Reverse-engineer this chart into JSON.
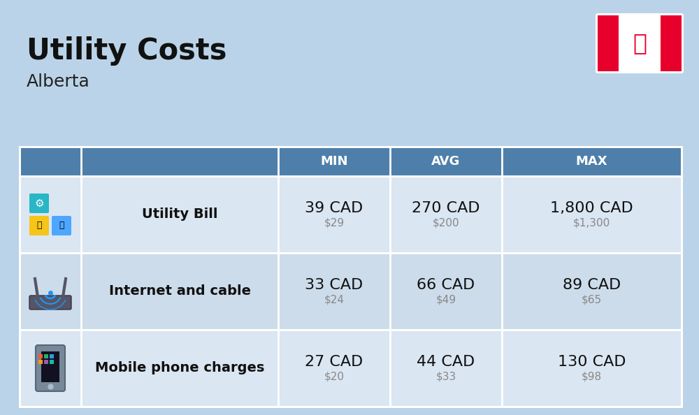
{
  "title": "Utility Costs",
  "subtitle": "Alberta",
  "background_color": "#bad3e8",
  "header_bg_color": "#4e7faa",
  "header_text_color": "#ffffff",
  "row_bg_color_1": "#dae6f2",
  "row_bg_color_2": "#cddcea",
  "table_border_color": "#ffffff",
  "headers": [
    "MIN",
    "AVG",
    "MAX"
  ],
  "rows": [
    {
      "icon": "utility",
      "label": "Utility Bill",
      "min_cad": "39 CAD",
      "min_usd": "$29",
      "avg_cad": "270 CAD",
      "avg_usd": "$200",
      "max_cad": "1,800 CAD",
      "max_usd": "$1,300"
    },
    {
      "icon": "internet",
      "label": "Internet and cable",
      "min_cad": "33 CAD",
      "min_usd": "$24",
      "avg_cad": "66 CAD",
      "avg_usd": "$49",
      "max_cad": "89 CAD",
      "max_usd": "$65"
    },
    {
      "icon": "mobile",
      "label": "Mobile phone charges",
      "min_cad": "27 CAD",
      "min_usd": "$20",
      "avg_cad": "44 CAD",
      "avg_usd": "$33",
      "max_cad": "130 CAD",
      "max_usd": "$98"
    }
  ],
  "title_fontsize": 30,
  "subtitle_fontsize": 18,
  "header_fontsize": 13,
  "cad_fontsize": 16,
  "usd_fontsize": 11,
  "label_fontsize": 14
}
